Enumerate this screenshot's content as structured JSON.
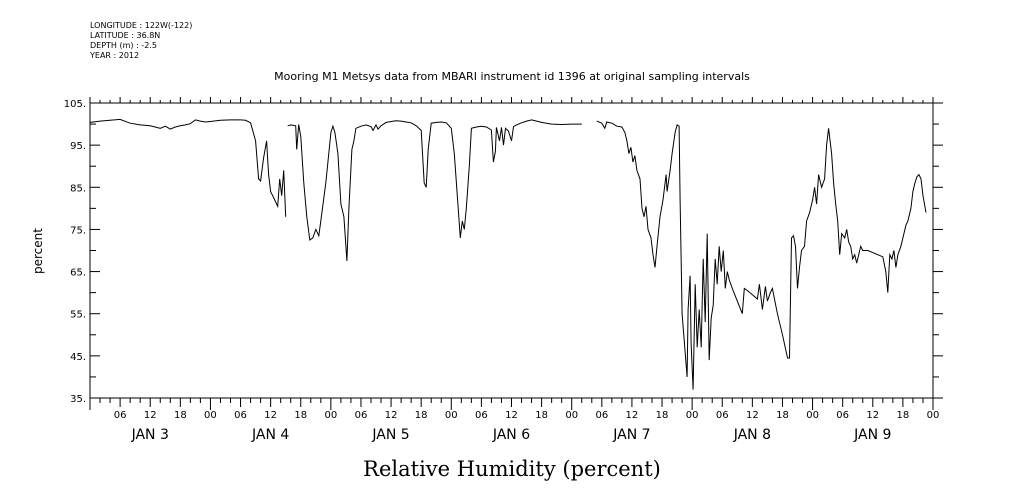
{
  "header": {
    "meta_lines": [
      "LONGITUDE : 122W(-122)",
      "LATITUDE : 36.8N",
      "DEPTH (m) : -2.5",
      "YEAR : 2012"
    ]
  },
  "chart_data": {
    "type": "line",
    "title": "Mooring M1 Metsys data from MBARI instrument id 1396 at original sampling intervals",
    "xlabel": "Relative Humidity (percent)",
    "ylabel": "percent",
    "ylim": [
      35,
      105
    ],
    "y_ticks": [
      "35.",
      "45.",
      "55.",
      "65.",
      "75.",
      "85.",
      "95.",
      "105."
    ],
    "x_range_hours": [
      0,
      168
    ],
    "x_hour_labels": [
      "06",
      "12",
      "18",
      "00",
      "06",
      "12",
      "18",
      "00",
      "06",
      "12",
      "18",
      "00",
      "06",
      "12",
      "18",
      "00",
      "06",
      "12",
      "18",
      "00",
      "06",
      "12",
      "18",
      "00",
      "06",
      "12",
      "18",
      "00"
    ],
    "day_labels": [
      "JAN  3",
      "JAN  4",
      "JAN  5",
      "JAN  6",
      "JAN  7",
      "JAN  8",
      "JAN  9"
    ],
    "grid": false,
    "series": [
      {
        "segments": [
          [
            [
              0,
              100.4
            ],
            [
              2,
              100.7
            ],
            [
              4,
              100.9
            ],
            [
              6,
              101.1
            ],
            [
              8,
              100.2
            ],
            [
              10,
              99.8
            ],
            [
              12,
              99.6
            ],
            [
              13,
              99.3
            ],
            [
              14,
              99.0
            ],
            [
              15,
              99.5
            ],
            [
              16,
              98.8
            ],
            [
              17,
              99.3
            ],
            [
              18,
              99.6
            ],
            [
              19,
              99.8
            ],
            [
              20,
              100.1
            ],
            [
              21,
              101.0
            ],
            [
              22,
              100.7
            ],
            [
              23,
              100.5
            ],
            [
              24,
              100.6
            ],
            [
              26,
              100.9
            ],
            [
              28,
              101.0
            ],
            [
              30,
              101.0
            ],
            [
              31,
              100.9
            ],
            [
              32,
              100.3
            ],
            [
              33,
              96.0
            ],
            [
              33.6,
              87.0
            ],
            [
              34,
              86.5
            ],
            [
              34.6,
              92.0
            ],
            [
              35.2,
              96.0
            ],
            [
              35.6,
              88.0
            ],
            [
              36,
              84.0
            ],
            [
              36.8,
              82.0
            ],
            [
              37.4,
              80.5
            ],
            [
              37.8,
              87.0
            ],
            [
              38.2,
              83.0
            ],
            [
              38.6,
              89.0
            ],
            [
              39,
              78.0
            ]
          ],
          [
            [
              39.4,
              99.6
            ],
            [
              40,
              99.8
            ],
            [
              41,
              99.6
            ],
            [
              41.2,
              94.0
            ],
            [
              41.6,
              99.9
            ],
            [
              42,
              97.0
            ],
            [
              42.6,
              86.0
            ],
            [
              43.2,
              78.0
            ],
            [
              43.8,
              72.5
            ],
            [
              44.4,
              73.0
            ],
            [
              45,
              75.0
            ],
            [
              45.6,
              73.5
            ],
            [
              46,
              77.0
            ],
            [
              47,
              86.0
            ],
            [
              48,
              98.0
            ],
            [
              48.4,
              99.5
            ],
            [
              48.8,
              98.0
            ],
            [
              49.4,
              93.0
            ],
            [
              50,
              81.0
            ],
            [
              50.6,
              78.0
            ],
            [
              51.2,
              67.5
            ],
            [
              51.6,
              80.0
            ],
            [
              52.2,
              94.0
            ],
            [
              52.6,
              96.0
            ],
            [
              53,
              99.0
            ],
            [
              54,
              99.5
            ],
            [
              55,
              99.8
            ],
            [
              56,
              99.4
            ],
            [
              56.4,
              98.5
            ],
            [
              57,
              99.8
            ],
            [
              57.4,
              98.8
            ],
            [
              58,
              99.6
            ],
            [
              59,
              100.4
            ],
            [
              60,
              100.6
            ],
            [
              61,
              100.8
            ],
            [
              62,
              100.7
            ],
            [
              63,
              100.5
            ],
            [
              64,
              100.3
            ],
            [
              65,
              99.6
            ],
            [
              66,
              98.5
            ],
            [
              66.6,
              86.0
            ],
            [
              67,
              85.0
            ],
            [
              67.4,
              94.0
            ],
            [
              68,
              100.2
            ],
            [
              69,
              100.4
            ],
            [
              70,
              100.5
            ],
            [
              71,
              100.3
            ],
            [
              72,
              99.0
            ],
            [
              72.6,
              93.0
            ],
            [
              73.2,
              83.0
            ],
            [
              73.8,
              73.0
            ],
            [
              74.2,
              77.0
            ],
            [
              74.6,
              75.0
            ],
            [
              75,
              80.0
            ],
            [
              75.6,
              90.0
            ],
            [
              76,
              99.0
            ],
            [
              77,
              99.3
            ],
            [
              78,
              99.5
            ],
            [
              79,
              99.3
            ],
            [
              80,
              98.6
            ],
            [
              80.4,
              91.0
            ],
            [
              80.8,
              93.5
            ],
            [
              81,
              99.2
            ],
            [
              81.6,
              96.0
            ],
            [
              82,
              99.2
            ],
            [
              82.4,
              95.0
            ],
            [
              82.8,
              99.0
            ],
            [
              83.4,
              98.3
            ],
            [
              84,
              96.0
            ],
            [
              84.4,
              99.4
            ],
            [
              85,
              99.8
            ],
            [
              86,
              100.3
            ],
            [
              87,
              100.7
            ],
            [
              88,
              101.0
            ],
            [
              90,
              100.4
            ],
            [
              92,
              100.0
            ],
            [
              94,
              99.9
            ],
            [
              96,
              100.0
            ],
            [
              98,
              100.0
            ]
          ],
          [
            [
              101,
              100.7
            ],
            [
              102,
              100.2
            ],
            [
              102.6,
              99.0
            ],
            [
              103,
              100.5
            ],
            [
              104,
              100.2
            ],
            [
              105,
              99.5
            ],
            [
              106,
              99.3
            ],
            [
              106.6,
              98.0
            ],
            [
              107,
              96.0
            ],
            [
              107.4,
              93.0
            ],
            [
              107.8,
              94.5
            ],
            [
              108.2,
              91.0
            ],
            [
              108.6,
              92.5
            ],
            [
              109,
              89.0
            ],
            [
              109.6,
              87.0
            ],
            [
              110,
              80.0
            ],
            [
              110.4,
              78.0
            ],
            [
              110.8,
              80.5
            ],
            [
              111.2,
              75.0
            ],
            [
              111.8,
              73.0
            ],
            [
              112.2,
              69.0
            ],
            [
              112.6,
              66.0
            ],
            [
              113,
              71.0
            ],
            [
              113.6,
              78.0
            ],
            [
              114.2,
              82.0
            ],
            [
              114.8,
              88.0
            ],
            [
              115,
              84.0
            ],
            [
              115.6,
              89.0
            ],
            [
              116,
              93.0
            ],
            [
              116.6,
              98.0
            ],
            [
              117,
              99.8
            ],
            [
              117.4,
              99.5
            ],
            [
              117.6,
              82.0
            ],
            [
              118,
              55.0
            ],
            [
              118.2,
              52.0
            ],
            [
              118.6,
              46.0
            ],
            [
              119,
              40.0
            ],
            [
              119.2,
              56.0
            ],
            [
              119.6,
              64.0
            ],
            [
              119.8,
              48.0
            ],
            [
              120.2,
              37.0
            ],
            [
              120.6,
              62.0
            ],
            [
              121,
              47.0
            ],
            [
              121.4,
              56.0
            ],
            [
              121.8,
              47.0
            ],
            [
              122.2,
              68.0
            ],
            [
              122.6,
              53.0
            ],
            [
              123,
              74.0
            ],
            [
              123.4,
              44.0
            ],
            [
              123.8,
              54.0
            ],
            [
              124.2,
              57.0
            ],
            [
              124.6,
              68.0
            ],
            [
              125,
              62.0
            ],
            [
              125.4,
              71.0
            ],
            [
              125.8,
              65.0
            ],
            [
              126.2,
              70.0
            ],
            [
              126.6,
              61.0
            ],
            [
              127,
              65.0
            ],
            [
              127.4,
              63.0
            ],
            [
              128,
              61.0
            ],
            [
              129,
              58.0
            ],
            [
              130,
              55.0
            ],
            [
              130.4,
              61.0
            ],
            [
              131,
              60.5
            ],
            [
              132,
              59.5
            ],
            [
              133,
              58.5
            ],
            [
              133.4,
              62.0
            ],
            [
              134,
              56.0
            ],
            [
              134.6,
              61.5
            ],
            [
              135,
              58.0
            ],
            [
              135.6,
              60.0
            ],
            [
              136,
              61.0
            ],
            [
              137,
              55.0
            ],
            [
              138,
              50.0
            ],
            [
              139,
              44.5
            ],
            [
              139.4,
              44.5
            ],
            [
              139.8,
              73.0
            ],
            [
              140.2,
              73.5
            ],
            [
              140.6,
              71.0
            ],
            [
              141,
              61.0
            ],
            [
              141.4,
              66.0
            ],
            [
              141.8,
              70.0
            ],
            [
              142.4,
              71.0
            ],
            [
              142.8,
              77.0
            ],
            [
              143.4,
              79.0
            ],
            [
              144,
              82.0
            ],
            [
              144.4,
              85.0
            ],
            [
              144.8,
              81.0
            ],
            [
              145.2,
              88.0
            ],
            [
              145.8,
              85.0
            ],
            [
              146.4,
              87.0
            ],
            [
              146.8,
              95.0
            ],
            [
              147.2,
              99.0
            ],
            [
              147.8,
              93.0
            ],
            [
              148.2,
              86.0
            ],
            [
              148.6,
              81.0
            ],
            [
              149,
              77.0
            ],
            [
              149.4,
              69.0
            ],
            [
              149.8,
              74.0
            ],
            [
              150.4,
              73.0
            ],
            [
              150.8,
              75.0
            ],
            [
              151.2,
              72.0
            ],
            [
              151.6,
              71.0
            ],
            [
              152,
              68.0
            ],
            [
              152.4,
              69.0
            ],
            [
              152.8,
              67.0
            ],
            [
              153.2,
              69.0
            ],
            [
              153.6,
              71.0
            ],
            [
              154,
              70.0
            ],
            [
              155,
              70.0
            ],
            [
              156,
              69.5
            ],
            [
              157,
              69.0
            ],
            [
              158,
              68.5
            ],
            [
              158.6,
              65.0
            ],
            [
              159,
              60.0
            ],
            [
              159.4,
              69.0
            ],
            [
              159.8,
              68.0
            ],
            [
              160.2,
              70.0
            ],
            [
              160.6,
              66.0
            ],
            [
              161,
              69.0
            ],
            [
              161.6,
              71.0
            ],
            [
              162,
              73.0
            ],
            [
              162.6,
              76.0
            ],
            [
              163,
              77.0
            ],
            [
              163.6,
              80.0
            ],
            [
              164,
              84.0
            ],
            [
              164.4,
              86.0
            ],
            [
              164.8,
              87.5
            ],
            [
              165.2,
              88.0
            ],
            [
              165.6,
              87.0
            ],
            [
              166,
              83.0
            ],
            [
              166.6,
              79.0
            ]
          ]
        ]
      }
    ]
  }
}
